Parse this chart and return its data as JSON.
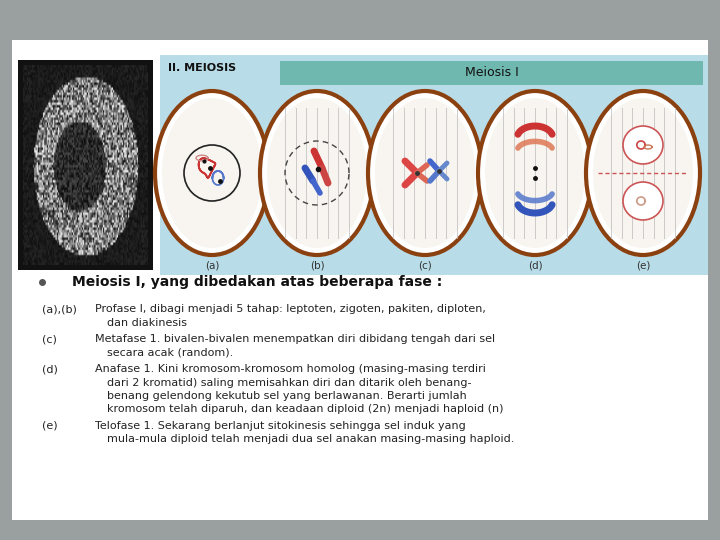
{
  "bg_color": "#9aa0a0",
  "slide_bg": "#ffffff",
  "title_bold": "Meiosis I, yang dibedakan atas beberapa fase :",
  "header_img_label": "II. MEIOSIS",
  "meiosis_label": "Meiosis I",
  "diagram_bg": "#b8dce8",
  "teal_box": "#6fb8b0",
  "brown_ring": "#8B4010",
  "text_color": "#222222",
  "items": [
    {
      "label": "(a),(b)",
      "text1": "Profase I, dibagi menjadi 5 tahap: leptoten, zigoten, pakiten, diploten,",
      "text2": "dan diakinesis"
    },
    {
      "label": "(c)",
      "text1": "Metafase 1. bivalen-bivalen menempatkan diri dibidang tengah dari sel",
      "text2": "secara acak (random)."
    },
    {
      "label": "(d)",
      "text1": "Anafase 1. Kini kromosom-kromosom homolog (masing-masing terdiri",
      "text2": "dari 2 kromatid) saling memisahkan diri dan ditarik oleh benang-",
      "text3": "benang gelendong kekutub sel yang berlawanan. Berarti jumlah",
      "text4": "kromosom telah diparuh, dan keadaan diploid (2n) menjadi haploid (n)"
    },
    {
      "label": "(e)",
      "text1": "Telofase 1. Sekarang berlanjut sitokinesis sehingga sel induk yang",
      "text2": "mula-mula diploid telah menjadi dua sel anakan masing-masing haploid."
    }
  ]
}
